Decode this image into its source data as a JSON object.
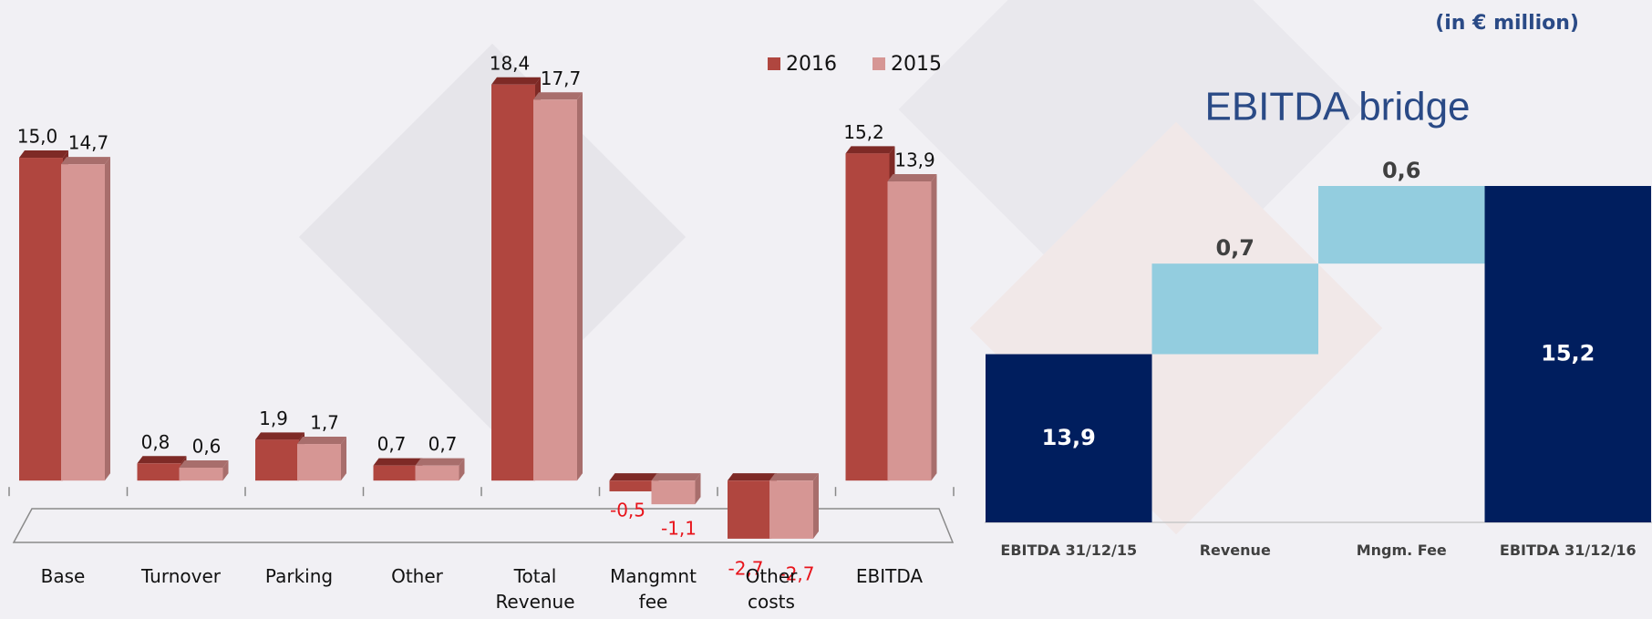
{
  "chart_data": [
    {
      "type": "bar3d",
      "categories": [
        "Base",
        "Turnover",
        "Parking",
        "Other",
        "Total Revenue",
        "Mangmnt fee",
        "Other costs",
        "EBITDA"
      ],
      "series": [
        {
          "name": "2016",
          "color": "#b0463f",
          "top_color": "#7e2a26",
          "values": [
            15.0,
            0.8,
            1.9,
            0.7,
            18.4,
            -0.5,
            -2.7,
            15.2
          ],
          "value_labels": [
            "15,0",
            "0,8",
            "1,9",
            "0,7",
            "18,4",
            "-0,5",
            "-2,7",
            "15,2"
          ]
        },
        {
          "name": "2015",
          "color": "#d69694",
          "top_color": "#a86e6c",
          "values": [
            14.7,
            0.6,
            1.7,
            0.7,
            17.7,
            -1.1,
            -2.7,
            13.9
          ],
          "value_labels": [
            "14,7",
            "0,6",
            "1,7",
            "0,7",
            "17,7",
            "-1,1",
            "-2,7",
            "13,9"
          ]
        }
      ],
      "ylim": [
        -3,
        20
      ],
      "negative_label_color": "#e8141b",
      "legend": "top-right"
    },
    {
      "type": "waterfall",
      "title": "EBITDA bridge",
      "subtitle": "(in € million)",
      "categories": [
        "EBITDA 31/12/15",
        "Revenue",
        "Mngm. Fee",
        "EBITDA 31/12/16"
      ],
      "values": [
        13.9,
        0.7,
        0.6,
        15.2
      ],
      "value_labels": [
        "13,9",
        "0,7",
        "0,6",
        "15,2"
      ],
      "colors": [
        "#001e5e",
        "#93cddf",
        "#93cddf",
        "#001e5e"
      ],
      "ylim": [
        12.6,
        15.2
      ]
    }
  ]
}
